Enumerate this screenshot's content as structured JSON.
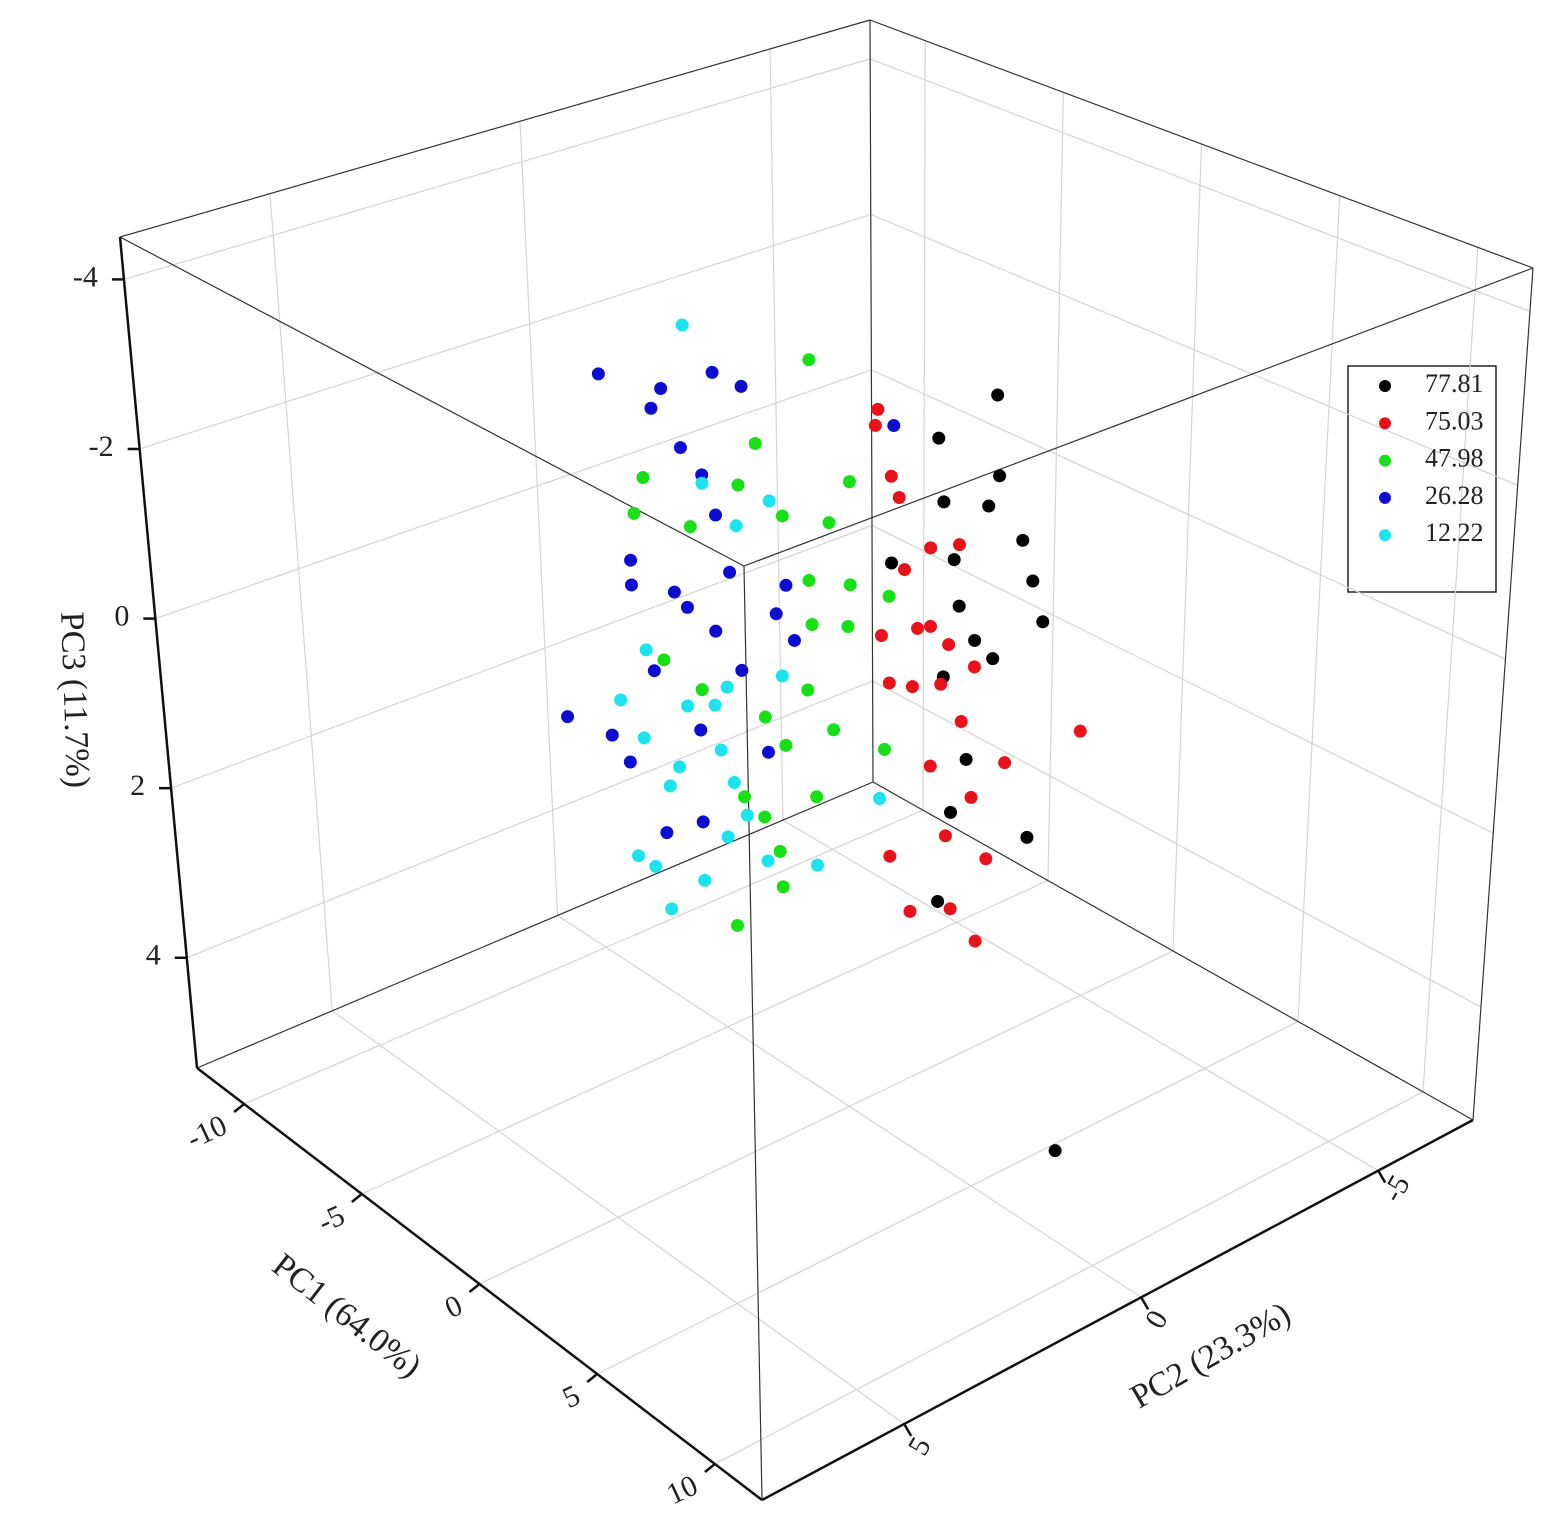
{
  "chart_data": {
    "type": "scatter3d",
    "xlabel": "PC1 (64.0%)",
    "ylabel": "PC2 (23.3%)",
    "zlabel": "PC3 (11.7%)",
    "xlim": [
      -12,
      12
    ],
    "xticks": [
      -10,
      -5,
      0,
      5,
      10
    ],
    "ylim": [
      8,
      -7
    ],
    "yticks": [
      5,
      0,
      -5
    ],
    "zlim": [
      5.3,
      -4.5
    ],
    "zticks": [
      -4,
      -2,
      0,
      2,
      4
    ],
    "grid": true,
    "legend": "upper right",
    "series": [
      {
        "name": "77.81",
        "color": "#000000",
        "x": [
          5.8,
          3.6,
          3.8,
          5.5,
          5.9,
          6.8,
          4.2,
          7.2,
          4.4,
          7.6,
          5.0,
          3.8,
          4.7,
          4.1,
          7.1,
          3.6,
          8.4,
          1.8,
          5.7
        ],
        "y": [
          0,
          0,
          0,
          0,
          0,
          0,
          0,
          0,
          0,
          0,
          0,
          0,
          0,
          0,
          0,
          0,
          0,
          0,
          0
        ],
        "z": [
          -3.8,
          -3.0,
          -2.3,
          -2.5,
          -2.9,
          -2.3,
          -1.7,
          -1.9,
          -1.2,
          -1.5,
          -0.9,
          -0.3,
          0.5,
          1.2,
          1.0,
          2.3,
          4.3,
          -1.3,
          -0.8
        ]
      },
      {
        "name": "75.03",
        "color": "#e8121a",
        "x": [
          1.3,
          1.2,
          1.8,
          2.1,
          3.3,
          4.4,
          2.3,
          1.4,
          2.8,
          4.0,
          5.0,
          1.7,
          2.6,
          3.7,
          4.5,
          9.1,
          3.3,
          6.2,
          4.9,
          3.9,
          1.7,
          5.5,
          2.5,
          4.1,
          5.1,
          3.3
        ],
        "y": [
          0,
          0,
          0,
          0,
          0,
          0,
          0,
          0,
          0,
          0,
          0,
          0,
          0,
          0,
          0,
          0,
          0,
          0,
          0,
          0,
          0,
          0,
          0,
          0,
          0,
          0
        ],
        "z": [
          -3.0,
          -2.8,
          -2.3,
          -2.1,
          -1.7,
          -1.9,
          -1.3,
          -0.4,
          -0.7,
          -0.7,
          -0.6,
          0.1,
          0.0,
          -0.2,
          0.1,
          -0.5,
          0.8,
          0.3,
          0.9,
          1.5,
          2.1,
          1.5,
          2.6,
          2.3,
          2.5,
          -0.8
        ]
      },
      {
        "name": "47.98",
        "color": "#17e017",
        "x": [
          -1.3,
          -3.4,
          0.2,
          -7.8,
          -4.1,
          -8.2,
          -2.4,
          -0.6,
          -6.0,
          -1.4,
          0.2,
          1.7,
          -1.3,
          0.1,
          -7.2,
          -5.7,
          -1.5,
          -3.2,
          -0.5,
          1.5,
          -2.4,
          -1.2,
          -3.3,
          -2.7,
          -2.6,
          -4.5,
          -4.1
        ],
        "y": [
          0,
          0,
          0,
          0,
          0,
          0,
          0,
          0,
          0,
          0,
          0,
          0,
          0,
          0,
          0,
          0,
          0,
          0,
          0,
          0,
          0,
          0,
          0,
          0,
          0,
          0,
          0
        ],
        "z": [
          -3.2,
          -1.9,
          -2.0,
          -0.8,
          -1.3,
          -0.3,
          -1.2,
          -1.4,
          -0.5,
          -0.6,
          -0.8,
          -0.9,
          -0.1,
          -0.3,
          1.3,
          1.4,
          0.7,
          1.3,
          1.0,
          0.9,
          1.5,
          1.9,
          2.5,
          2.8,
          3.2,
          4.0,
          2.4
        ]
      },
      {
        "name": "26.28",
        "color": "#0d0dd2",
        "x": [
          -9.4,
          -7.0,
          -5.0,
          -3.9,
          -7.4,
          -6.3,
          -5.5,
          -5.0,
          -8.4,
          -8.4,
          -6.7,
          -4.5,
          -6.2,
          -5.1,
          -2.7,
          -2.3,
          -2.0,
          -4.1,
          -7.6,
          -11.2,
          -9.4,
          -8.7,
          -5.8,
          -3.1,
          -5.8,
          -7.3,
          1.9
        ],
        "y": [
          0,
          0,
          0,
          0,
          0,
          0,
          0,
          0,
          0,
          0,
          0,
          0,
          0,
          0,
          0,
          0,
          0,
          0,
          0,
          0,
          0,
          0,
          0,
          0,
          0,
          0,
          0
        ],
        "z": [
          -1.8,
          -2.0,
          -2.5,
          -2.5,
          -1.7,
          -1.4,
          -1.2,
          -0.8,
          0.3,
          0.6,
          0.4,
          -0.2,
          0.5,
          0.6,
          0.0,
          -0.4,
          0.2,
          0.9,
          1.5,
          2.7,
          2.6,
          2.8,
          1.9,
          1.7,
          3.0,
          3.4,
          -2.9
        ]
      },
      {
        "name": "12.22",
        "color": "#1ce3ee",
        "x": [
          -6.1,
          -5.5,
          -2.9,
          -4.2,
          -7.9,
          -9.0,
          -8.1,
          -6.3,
          -5.2,
          -5.0,
          -6.7,
          -7.1,
          -4.5,
          -4.0,
          -4.8,
          -8.5,
          -7.8,
          -5.8,
          -7.2,
          -3.2,
          -1.2,
          1.3,
          -2.5,
          -4.7
        ],
        "y": [
          0,
          0,
          0,
          0,
          0,
          0,
          0,
          0,
          0,
          0,
          0,
          0,
          0,
          0,
          0,
          0,
          0,
          0,
          0,
          0,
          0,
          0,
          0,
          0
        ],
        "z": [
          -2.9,
          -1.1,
          -1.3,
          -0.8,
          1.3,
          2.1,
          2.4,
          1.7,
          1.5,
          2.0,
          2.5,
          2.8,
          2.3,
          2.6,
          3.0,
          3.9,
          3.9,
          3.7,
          4.3,
          3.0,
          2.7,
          1.5,
          0.7,
          1.2
        ]
      }
    ]
  }
}
